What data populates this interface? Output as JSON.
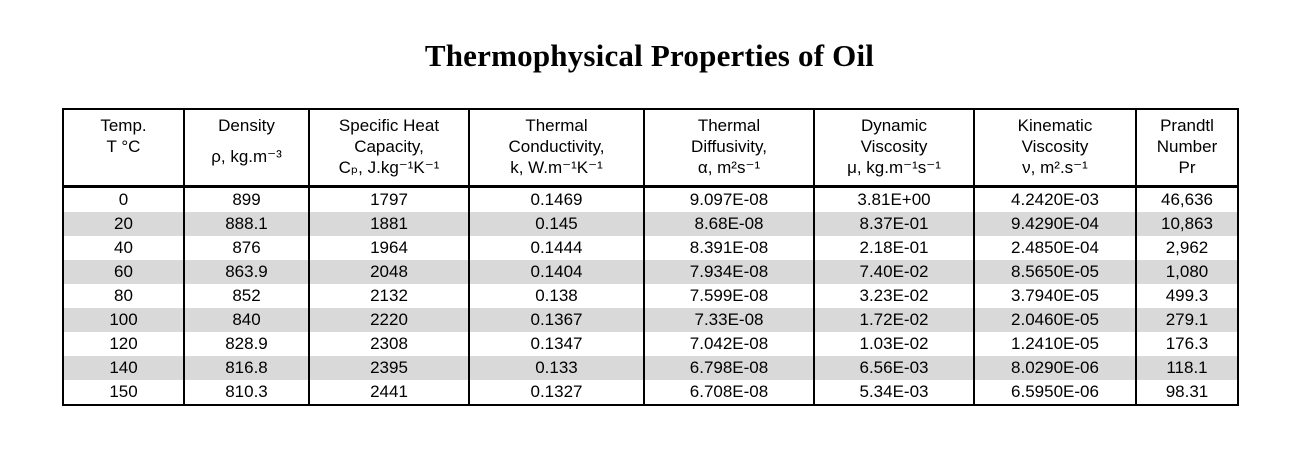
{
  "page": {
    "title": "Thermophysical Properties of Oil"
  },
  "colors": {
    "background": "#ffffff",
    "border": "#000000",
    "text": "#000000",
    "row_shade": "#d9d9d9"
  },
  "table": {
    "headers": [
      {
        "name": "temperature",
        "lines": [
          "Temp.",
          "T °C"
        ]
      },
      {
        "name": "density",
        "lines": [
          "Density",
          "ρ, kg.m⁻³"
        ]
      },
      {
        "name": "specific-heat-capacity",
        "lines": [
          "Specific Heat",
          "Capacity,",
          "Cₚ, J.kg⁻¹K⁻¹"
        ]
      },
      {
        "name": "thermal-conductivity",
        "lines": [
          "Thermal",
          "Conductivity,",
          "k, W.m⁻¹K⁻¹"
        ]
      },
      {
        "name": "thermal-diffusivity",
        "lines": [
          "Thermal",
          "Diffusivity,",
          "α, m²s⁻¹"
        ]
      },
      {
        "name": "dynamic-viscosity",
        "lines": [
          "Dynamic",
          "Viscosity",
          "μ, kg.m⁻¹s⁻¹"
        ]
      },
      {
        "name": "kinematic-viscosity",
        "lines": [
          "Kinematic",
          "Viscosity",
          "ν, m².s⁻¹"
        ]
      },
      {
        "name": "prandtl-number",
        "lines": [
          "Prandtl",
          "Number",
          "Pr"
        ]
      }
    ],
    "rows": [
      {
        "cells": [
          "0",
          "899",
          "1797",
          "0.1469",
          "9.097E-08",
          "3.81E+00",
          "4.2420E-03",
          "46,636"
        ]
      },
      {
        "cells": [
          "20",
          "888.1",
          "1881",
          "0.145",
          "8.68E-08",
          "8.37E-01",
          "9.4290E-04",
          "10,863"
        ]
      },
      {
        "cells": [
          "40",
          "876",
          "1964",
          "0.1444",
          "8.391E-08",
          "2.18E-01",
          "2.4850E-04",
          "2,962"
        ]
      },
      {
        "cells": [
          "60",
          "863.9",
          "2048",
          "0.1404",
          "7.934E-08",
          "7.40E-02",
          "8.5650E-05",
          "1,080"
        ]
      },
      {
        "cells": [
          "80",
          "852",
          "2132",
          "0.138",
          "7.599E-08",
          "3.23E-02",
          "3.7940E-05",
          "499.3"
        ]
      },
      {
        "cells": [
          "100",
          "840",
          "2220",
          "0.1367",
          "7.33E-08",
          "1.72E-02",
          "2.0460E-05",
          "279.1"
        ]
      },
      {
        "cells": [
          "120",
          "828.9",
          "2308",
          "0.1347",
          "7.042E-08",
          "1.03E-02",
          "1.2410E-05",
          "176.3"
        ]
      },
      {
        "cells": [
          "140",
          "816.8",
          "2395",
          "0.133",
          "6.798E-08",
          "6.56E-03",
          "8.0290E-06",
          "118.1"
        ]
      },
      {
        "cells": [
          "150",
          "810.3",
          "2441",
          "0.1327",
          "6.708E-08",
          "5.34E-03",
          "6.5950E-06",
          "98.31"
        ]
      }
    ]
  }
}
